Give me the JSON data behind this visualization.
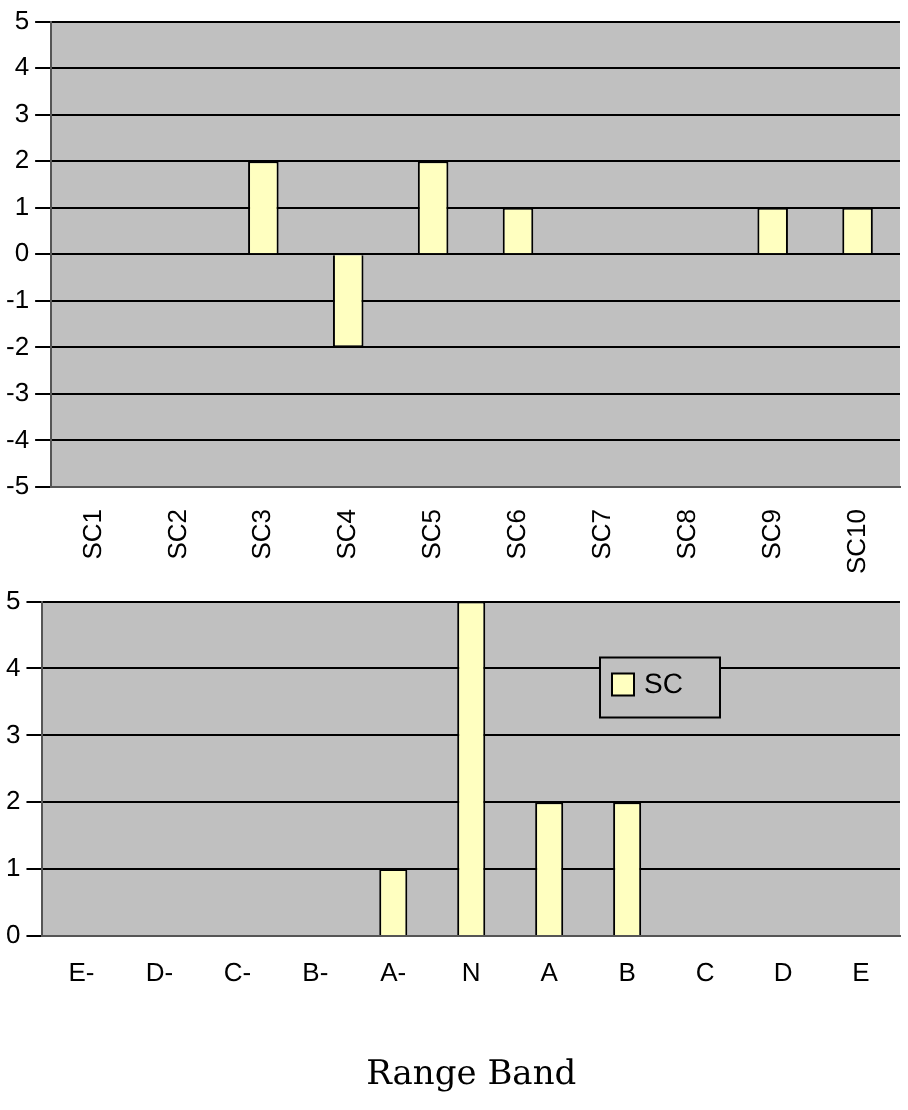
{
  "chart_data": [
    {
      "type": "bar",
      "categories": [
        "SC1",
        "SC2",
        "SC3",
        "SC4",
        "SC5",
        "SC6",
        "SC7",
        "SC8",
        "SC9",
        "SC10"
      ],
      "series": [
        {
          "color": "#ffffc0",
          "values": [
            0,
            0,
            2,
            -2,
            2,
            1,
            0,
            0,
            1,
            1
          ]
        }
      ],
      "ylim": [
        -5,
        5
      ],
      "yticks": [
        -5,
        -4,
        -3,
        -2,
        -1,
        0,
        1,
        2,
        3,
        4,
        5
      ],
      "grid": "y",
      "legend": false
    },
    {
      "type": "bar",
      "categories": [
        "E-",
        "D-",
        "C-",
        "B-",
        "A-",
        "N",
        "A",
        "B",
        "C",
        "D",
        "E"
      ],
      "series": [
        {
          "name": "SC",
          "color": "#ffffc0",
          "values": [
            0,
            0,
            0,
            0,
            1,
            5,
            2,
            2,
            0,
            0,
            0
          ]
        }
      ],
      "ylim": [
        0,
        5
      ],
      "yticks": [
        0,
        1,
        2,
        3,
        4,
        5
      ],
      "grid": "y",
      "legend": "top right",
      "xlabel": "Range Band"
    }
  ]
}
